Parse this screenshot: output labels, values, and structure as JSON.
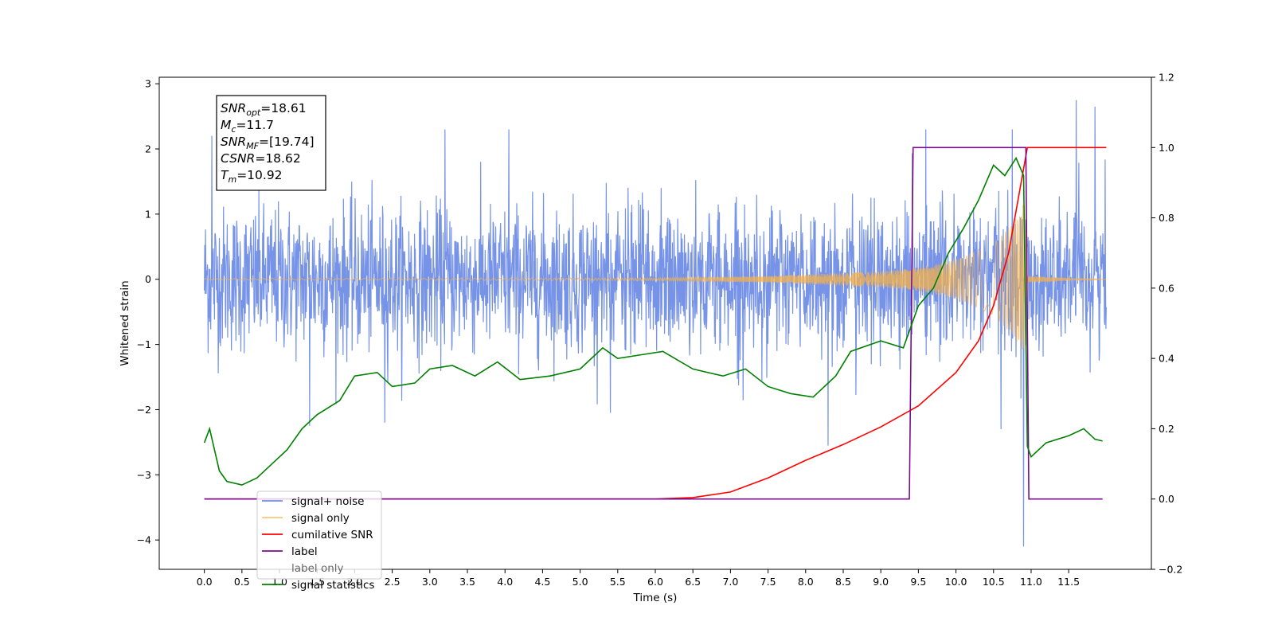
{
  "chart_data": {
    "type": "line",
    "xlabel": "Time (s)",
    "ylabel": "Whitened strain",
    "xlim": [
      -0.6,
      12.6
    ],
    "ylim": [
      -4.45,
      3.1
    ],
    "y2lim": [
      -0.2,
      1.2
    ],
    "x_ticks": [
      0.0,
      0.5,
      1.0,
      1.5,
      2.0,
      2.5,
      3.0,
      3.5,
      4.0,
      4.5,
      5.0,
      5.5,
      6.0,
      6.5,
      7.0,
      7.5,
      8.0,
      8.5,
      9.0,
      9.5,
      10.0,
      10.5,
      11.0,
      11.5
    ],
    "x_tick_labels": [
      "0.0",
      "0.5",
      "1.0",
      "1.5",
      "2.0",
      "2.5",
      "3.0",
      "3.5",
      "4.0",
      "4.5",
      "5.0",
      "5.5",
      "6.0",
      "6.5",
      "7.0",
      "7.5",
      "8.0",
      "8.5",
      "9.0",
      "9.5",
      "10.0",
      "10.5",
      "11.0",
      "11.5"
    ],
    "y_ticks": [
      -4,
      -3,
      -2,
      -1,
      0,
      1,
      2,
      3
    ],
    "y_tick_labels": [
      "−4",
      "−3",
      "−2",
      "−1",
      "0",
      "1",
      "2",
      "3"
    ],
    "y2_ticks": [
      -0.2,
      0.0,
      0.2,
      0.4,
      0.6,
      0.8,
      1.0,
      1.2
    ],
    "y2_tick_labels": [
      "−0.2",
      "0.0",
      "0.2",
      "0.4",
      "0.6",
      "0.8",
      "1.0",
      "1.2"
    ],
    "grid": false,
    "legend_placement": "lower-left",
    "info_box": [
      {
        "base": "SNR",
        "sub": "opt",
        "value": "=18.61"
      },
      {
        "base": "M",
        "sub": "c",
        "value": "=11.7"
      },
      {
        "base": "SNR",
        "sub": "MF",
        "value": "=[19.74]"
      },
      {
        "base": "CSNR",
        "sub": "",
        "value": "=18.62"
      },
      {
        "base": "T",
        "sub": "m",
        "value": "=10.92"
      }
    ],
    "noise": {
      "x_range": [
        0.0,
        12.0
      ],
      "typical_range": [
        -1.5,
        1.5
      ],
      "min": -4.1,
      "max": 2.75,
      "spikes": [
        {
          "x": 0.1,
          "y": 2.2
        },
        {
          "x": 3.2,
          "y": 2.3
        },
        {
          "x": 4.05,
          "y": 2.3
        },
        {
          "x": 9.6,
          "y": 2.3
        },
        {
          "x": 10.75,
          "y": 2.3
        },
        {
          "x": 11.6,
          "y": 2.75
        },
        {
          "x": 11.85,
          "y": 2.65
        },
        {
          "x": 10.9,
          "y": -4.1
        },
        {
          "x": 8.3,
          "y": -2.55
        },
        {
          "x": 1.4,
          "y": -2.25
        },
        {
          "x": 2.4,
          "y": -2.2
        },
        {
          "x": 5.4,
          "y": -2.05
        },
        {
          "x": 10.6,
          "y": -2.3
        }
      ]
    },
    "series": [
      {
        "name": "signal+ noise",
        "color": "#6f8de6",
        "axis": "left",
        "kind": "noise"
      },
      {
        "name": "signal only",
        "color": "#f5b24a",
        "axis": "left",
        "kind": "chirp",
        "amplitude_points": [
          [
            0.0,
            0.01
          ],
          [
            6.0,
            0.02
          ],
          [
            7.5,
            0.05
          ],
          [
            9.0,
            0.12
          ],
          [
            9.5,
            0.18
          ],
          [
            10.0,
            0.3
          ],
          [
            10.5,
            0.55
          ],
          [
            10.75,
            0.85
          ],
          [
            10.92,
            1.2
          ],
          [
            10.95,
            0.05
          ],
          [
            12.0,
            0.0
          ]
        ]
      },
      {
        "name": "cumilative SNR",
        "color": "#ff0000",
        "axis": "right",
        "kind": "line",
        "points": [
          [
            0.0,
            0.0
          ],
          [
            6.0,
            0.0
          ],
          [
            6.5,
            0.004
          ],
          [
            7.0,
            0.02
          ],
          [
            7.5,
            0.06
          ],
          [
            8.0,
            0.11
          ],
          [
            8.5,
            0.155
          ],
          [
            9.0,
            0.205
          ],
          [
            9.5,
            0.265
          ],
          [
            10.0,
            0.36
          ],
          [
            10.3,
            0.45
          ],
          [
            10.5,
            0.55
          ],
          [
            10.7,
            0.7
          ],
          [
            10.85,
            0.88
          ],
          [
            10.95,
            1.0
          ],
          [
            12.0,
            1.0
          ]
        ]
      },
      {
        "name": "label",
        "color": "#7b0d8e",
        "axis": "right",
        "kind": "line",
        "points": [
          [
            0.0,
            0.0
          ],
          [
            9.38,
            0.0
          ],
          [
            9.43,
            1.0
          ],
          [
            10.93,
            1.0
          ],
          [
            10.97,
            0.0
          ],
          [
            11.95,
            0.0
          ]
        ]
      },
      {
        "name": "label only",
        "color": "#888888",
        "axis": "right",
        "kind": "hidden"
      },
      {
        "name": "signal statistics",
        "color": "#008000",
        "axis": "right",
        "kind": "line",
        "points": [
          [
            0.0,
            0.16
          ],
          [
            0.07,
            0.2
          ],
          [
            0.2,
            0.08
          ],
          [
            0.3,
            0.05
          ],
          [
            0.5,
            0.04
          ],
          [
            0.7,
            0.06
          ],
          [
            0.9,
            0.1
          ],
          [
            1.1,
            0.14
          ],
          [
            1.3,
            0.2
          ],
          [
            1.5,
            0.24
          ],
          [
            1.8,
            0.28
          ],
          [
            2.0,
            0.35
          ],
          [
            2.3,
            0.36
          ],
          [
            2.5,
            0.32
          ],
          [
            2.8,
            0.33
          ],
          [
            3.0,
            0.37
          ],
          [
            3.3,
            0.38
          ],
          [
            3.6,
            0.35
          ],
          [
            3.9,
            0.39
          ],
          [
            4.2,
            0.34
          ],
          [
            4.6,
            0.35
          ],
          [
            5.0,
            0.37
          ],
          [
            5.3,
            0.43
          ],
          [
            5.5,
            0.4
          ],
          [
            5.8,
            0.41
          ],
          [
            6.1,
            0.42
          ],
          [
            6.5,
            0.37
          ],
          [
            6.9,
            0.35
          ],
          [
            7.2,
            0.37
          ],
          [
            7.5,
            0.32
          ],
          [
            7.8,
            0.3
          ],
          [
            8.1,
            0.29
          ],
          [
            8.4,
            0.35
          ],
          [
            8.6,
            0.42
          ],
          [
            9.0,
            0.45
          ],
          [
            9.3,
            0.43
          ],
          [
            9.5,
            0.55
          ],
          [
            9.7,
            0.6
          ],
          [
            9.9,
            0.7
          ],
          [
            10.1,
            0.77
          ],
          [
            10.3,
            0.85
          ],
          [
            10.5,
            0.95
          ],
          [
            10.65,
            0.92
          ],
          [
            10.8,
            0.97
          ],
          [
            10.9,
            0.92
          ],
          [
            10.95,
            0.15
          ],
          [
            11.0,
            0.12
          ],
          [
            11.2,
            0.16
          ],
          [
            11.5,
            0.18
          ],
          [
            11.7,
            0.2
          ],
          [
            11.85,
            0.17
          ],
          [
            11.95,
            0.165
          ]
        ]
      }
    ]
  }
}
